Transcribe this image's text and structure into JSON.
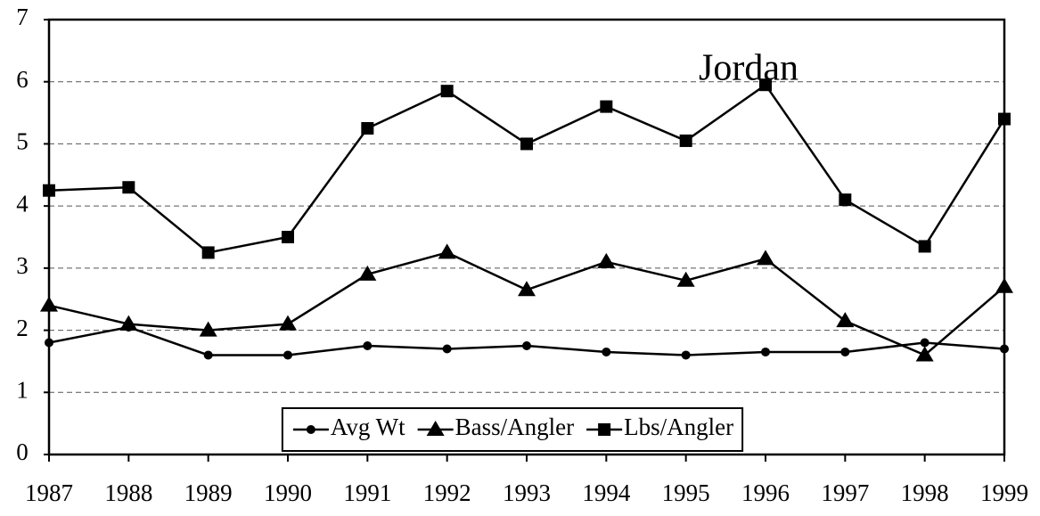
{
  "chart_data": {
    "type": "line",
    "title": "Jordan",
    "x": [
      1987,
      1988,
      1989,
      1990,
      1991,
      1992,
      1993,
      1994,
      1995,
      1996,
      1997,
      1998,
      1999
    ],
    "xlim": [
      1987,
      1999
    ],
    "xticks": [
      1987,
      1988,
      1989,
      1990,
      1991,
      1992,
      1993,
      1994,
      1995,
      1996,
      1997,
      1998,
      1999
    ],
    "ylim": [
      0,
      7
    ],
    "yticks": [
      0,
      1,
      2,
      3,
      4,
      5,
      6,
      7
    ],
    "grid": true,
    "legend": "bottom",
    "series": [
      {
        "name": "Avg Wt",
        "color": "#000000",
        "marker": "circle",
        "values": [
          1.8,
          2.05,
          1.6,
          1.6,
          1.75,
          1.7,
          1.75,
          1.65,
          1.6,
          1.65,
          1.65,
          1.8,
          1.7
        ]
      },
      {
        "name": "Bass/Angler",
        "color": "#000000",
        "marker": "triangle",
        "values": [
          2.4,
          2.1,
          2.0,
          2.1,
          2.9,
          3.25,
          2.65,
          3.1,
          2.8,
          3.15,
          2.15,
          1.6,
          2.7
        ]
      },
      {
        "name": "Lbs/Angler",
        "color": "#000000",
        "marker": "square",
        "values": [
          4.25,
          4.3,
          3.25,
          3.5,
          5.25,
          5.85,
          5.0,
          5.6,
          5.05,
          5.95,
          4.1,
          3.35,
          5.4
        ]
      }
    ]
  }
}
